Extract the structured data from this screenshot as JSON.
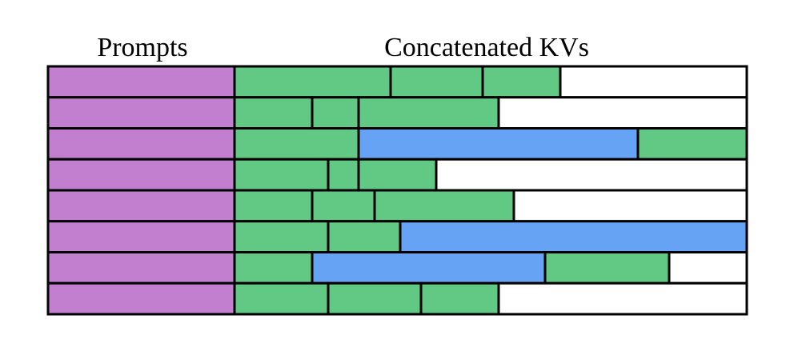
{
  "header": {
    "prompts_label": "Prompts",
    "kvs_label": "Concatenated KVs"
  }
}
